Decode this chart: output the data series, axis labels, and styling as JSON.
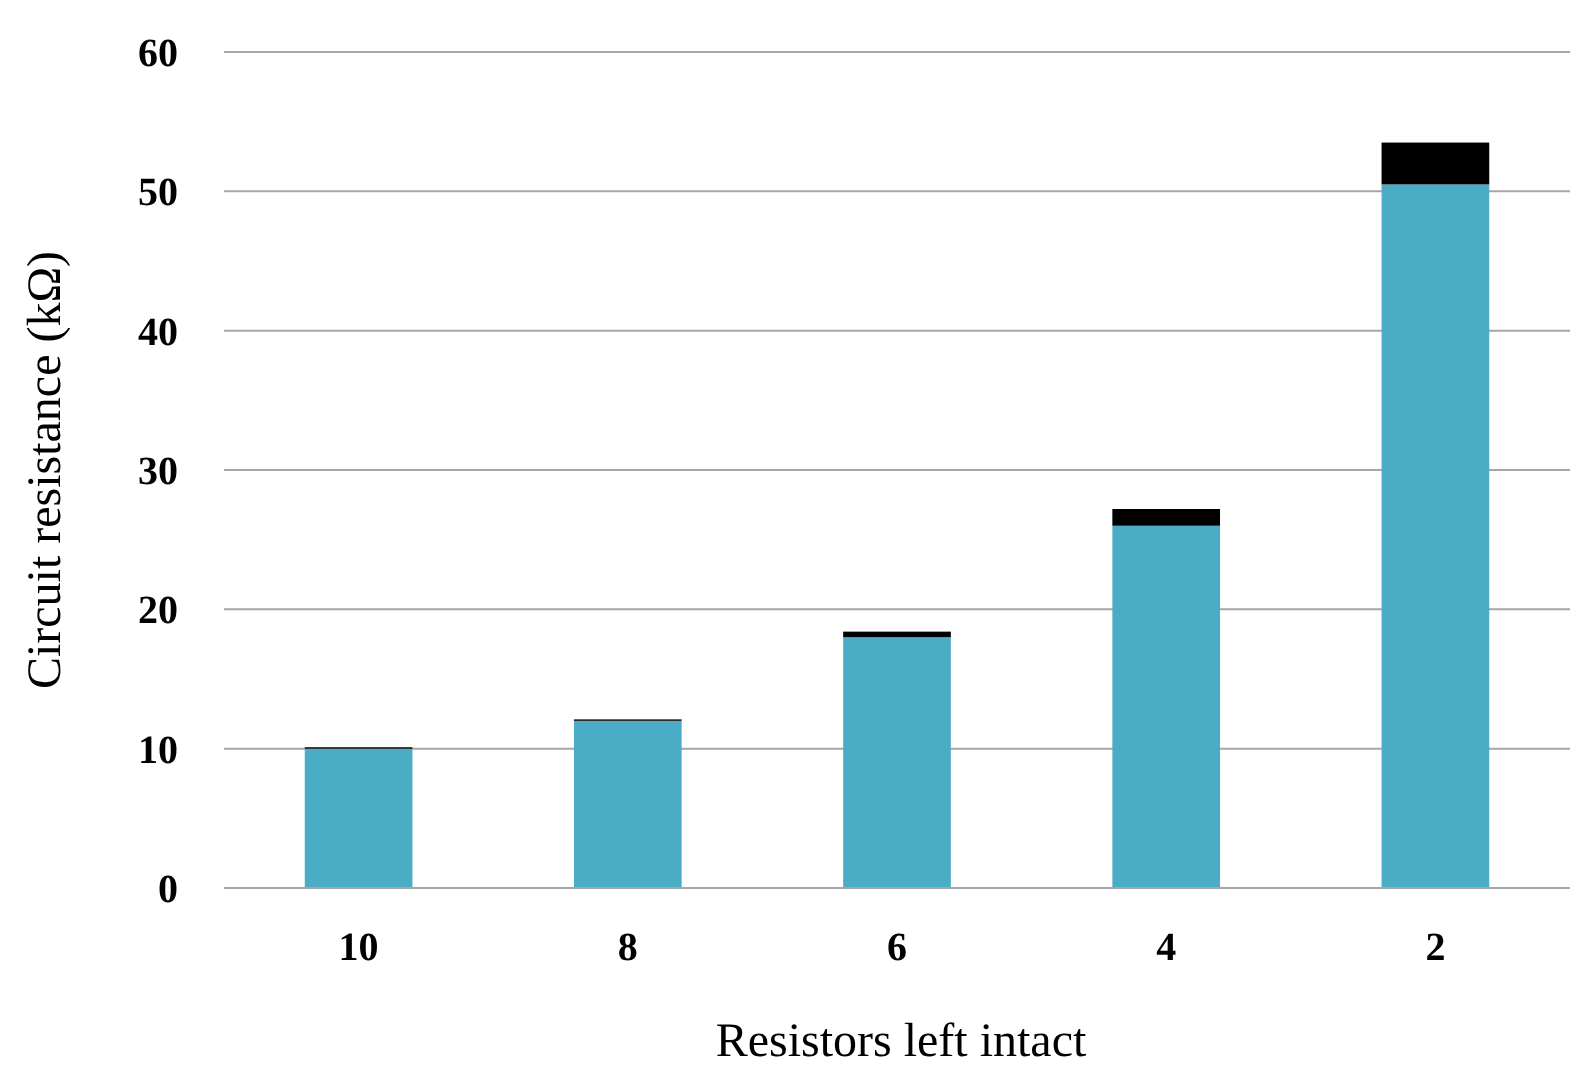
{
  "chart_data": {
    "type": "bar",
    "stacked": true,
    "xlabel": "Resistors left intact",
    "ylabel": "Circuit resistance (kΩ)",
    "categories": [
      "10",
      "8",
      "6",
      "4",
      "2"
    ],
    "series": [
      {
        "color": "#4bacc6",
        "values": [
          10,
          12,
          18,
          26,
          50.5
        ]
      },
      {
        "color": "#000000",
        "values": [
          0.1,
          0.1,
          0.4,
          1.2,
          3
        ]
      }
    ],
    "ylim": [
      0,
      60
    ],
    "yticks": [
      0,
      10,
      20,
      30,
      40,
      50,
      60
    ],
    "grid": "y"
  }
}
